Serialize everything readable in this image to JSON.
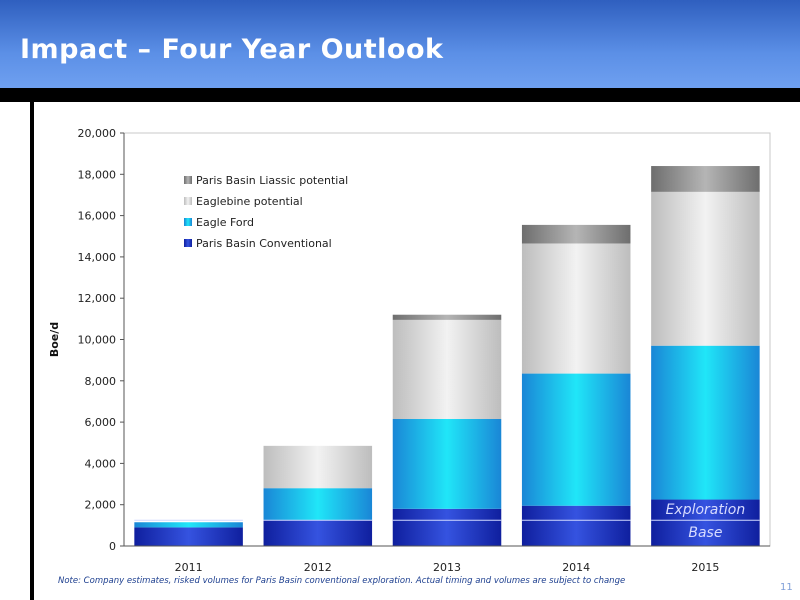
{
  "slide": {
    "title": "Impact – Four Year Outlook",
    "footnote": "Note: Company estimates, risked volumes for Paris Basin conventional exploration.  Actual timing and volumes are subject to change",
    "page_number": "11"
  },
  "chart_data": {
    "type": "bar",
    "stacked": true,
    "categories": [
      "2011",
      "2012",
      "2013",
      "2014",
      "2015"
    ],
    "ylabel": "Boe/d",
    "ylim": [
      0,
      20000
    ],
    "yticks": [
      "0",
      "2,000",
      "4,000",
      "6,000",
      "8,000",
      "10,000",
      "12,000",
      "14,000",
      "16,000",
      "18,000",
      "20,000"
    ],
    "legend_position": "top-left",
    "series": [
      {
        "name": "Paris Basin Conventional",
        "color": "#1d35c0",
        "values": [
          900,
          1250,
          1800,
          1950,
          2250
        ]
      },
      {
        "name": "Eagle Ford",
        "color": "#1fb4ee",
        "values": [
          250,
          1550,
          4350,
          6400,
          7450
        ]
      },
      {
        "name": "Eaglebine potential",
        "color": "#d6d6d6",
        "values": [
          0,
          2050,
          4800,
          6300,
          7450
        ]
      },
      {
        "name": "Paris Basin Liassic potential",
        "color": "#8c8c8c",
        "values": [
          0,
          0,
          250,
          900,
          1250
        ]
      }
    ],
    "base_line_value": 1250,
    "annotations": [
      {
        "text": "Exploration",
        "category": "2015"
      },
      {
        "text": "Base",
        "category": "2015"
      }
    ]
  }
}
